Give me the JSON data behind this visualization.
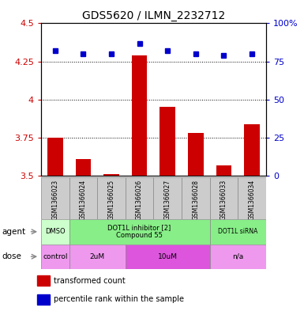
{
  "title": "GDS5620 / ILMN_2232712",
  "samples": [
    "GSM1366023",
    "GSM1366024",
    "GSM1366025",
    "GSM1366026",
    "GSM1366027",
    "GSM1366028",
    "GSM1366033",
    "GSM1366034"
  ],
  "bar_values": [
    3.75,
    3.61,
    3.51,
    4.29,
    3.95,
    3.78,
    3.57,
    3.84
  ],
  "dot_values": [
    82,
    80,
    80,
    87,
    82,
    80,
    79,
    80
  ],
  "ylim_left": [
    3.5,
    4.5
  ],
  "ylim_right": [
    0,
    100
  ],
  "yticks_left": [
    3.5,
    3.75,
    4.0,
    4.25,
    4.5
  ],
  "yticks_right": [
    0,
    25,
    50,
    75,
    100
  ],
  "ytick_labels_left": [
    "3.5",
    "3.75",
    "4",
    "4.25",
    "4.5"
  ],
  "ytick_labels_right": [
    "0",
    "25",
    "50",
    "75",
    "100%"
  ],
  "bar_color": "#cc0000",
  "dot_color": "#0000cc",
  "bar_bottom": 3.5,
  "agent_groups": [
    {
      "label": "DMSO",
      "start": 0,
      "end": 1
    },
    {
      "label": "DOT1L inhibitor [2]\nCompound 55",
      "start": 1,
      "end": 6
    },
    {
      "label": "DOT1L siRNA",
      "start": 6,
      "end": 8
    }
  ],
  "agent_colors": [
    "#ccffcc",
    "#88ee88",
    "#88ee88"
  ],
  "dose_groups": [
    {
      "label": "control",
      "start": 0,
      "end": 1
    },
    {
      "label": "2uM",
      "start": 1,
      "end": 3
    },
    {
      "label": "10uM",
      "start": 3,
      "end": 6
    },
    {
      "label": "n/a",
      "start": 6,
      "end": 8
    }
  ],
  "dose_colors": [
    "#ee99ee",
    "#ee99ee",
    "#dd55dd",
    "#ee99ee"
  ],
  "legend_bar_label": "transformed count",
  "legend_dot_label": "percentile rank within the sample",
  "grid_color": "black",
  "background_color": "#ffffff",
  "agent_label": "agent",
  "dose_label": "dose",
  "sample_box_color": "#cccccc",
  "n_samples": 8
}
